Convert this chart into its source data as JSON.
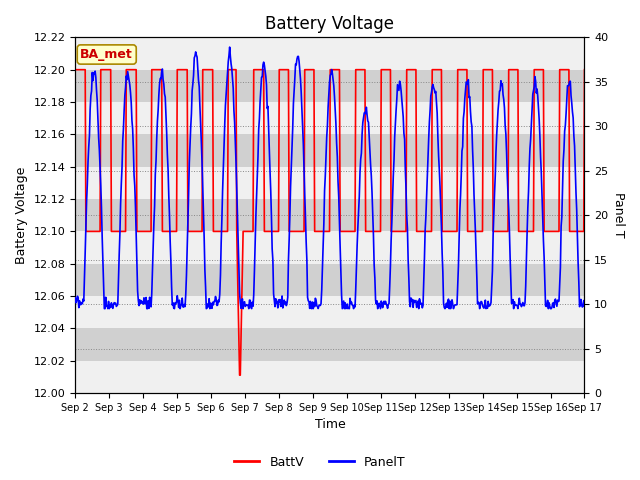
{
  "title": "Battery Voltage",
  "xlabel": "Time",
  "ylabel_left": "Battery Voltage",
  "ylabel_right": "Panel T",
  "ylim_left": [
    12.0,
    12.22
  ],
  "ylim_right": [
    0,
    40
  ],
  "yticks_left": [
    12.0,
    12.02,
    12.04,
    12.06,
    12.08,
    12.1,
    12.12,
    12.14,
    12.16,
    12.18,
    12.2,
    12.22
  ],
  "yticks_right": [
    0,
    5,
    10,
    15,
    20,
    25,
    30,
    35,
    40
  ],
  "xtick_labels": [
    "Sep 2",
    "Sep 3",
    "Sep 4",
    "Sep 5",
    "Sep 6",
    "Sep 7",
    "Sep 8",
    "Sep 9",
    "Sep 10",
    "Sep 11",
    "Sep 12",
    "Sep 13",
    "Sep 14",
    "Sep 15",
    "Sep 16",
    "Sep 17"
  ],
  "annotation_text": "BA_met",
  "annotation_bg": "#ffffcc",
  "annotation_border": "#aa8800",
  "annotation_text_color": "#cc0000",
  "bg_color": "#ffffff",
  "plot_bg_color": "#e0e0e0",
  "band_light": "#f0f0f0",
  "band_dark": "#d0d0d0",
  "batt_color": "#ff0000",
  "panel_color": "#0000ff",
  "legend_batt_label": "BattV",
  "legend_panel_label": "PanelT",
  "title_fontsize": 12,
  "axis_fontsize": 9,
  "tick_fontsize": 8,
  "xtick_fontsize": 7
}
